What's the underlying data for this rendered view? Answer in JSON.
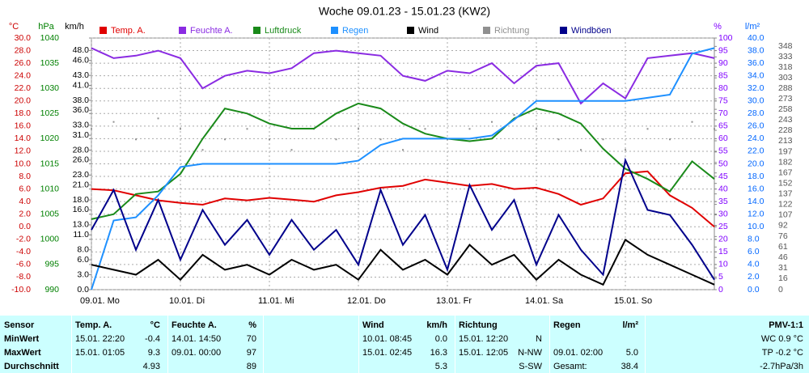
{
  "chart_data": {
    "type": "line",
    "title": "Woche 09.01.23 - 15.01.23 (KW2)",
    "grid": true,
    "xlim": [
      0,
      7
    ],
    "xticks": [
      {
        "value": 0,
        "label": "09.01. Mo"
      },
      {
        "value": 1,
        "label": "10.01. Di"
      },
      {
        "value": 2,
        "label": "11.01. Mi"
      },
      {
        "value": 3,
        "label": "12.01. Do"
      },
      {
        "value": 4,
        "label": "13.01. Fr"
      },
      {
        "value": 5,
        "label": "14.01. Sa"
      },
      {
        "value": 6,
        "label": "15.01. So"
      }
    ],
    "x": [
      0,
      0.25,
      0.5,
      0.75,
      1,
      1.25,
      1.5,
      1.75,
      2,
      2.25,
      2.5,
      2.75,
      3,
      3.25,
      3.5,
      3.75,
      4,
      4.25,
      4.5,
      4.75,
      5,
      5.25,
      5.5,
      5.75,
      6,
      6.25,
      6.5,
      6.75,
      7
    ],
    "axes": [
      {
        "label": "°C",
        "color": "#cc0000",
        "lim": [
          -10,
          30
        ],
        "ticks": [
          {
            "value": -10,
            "label": "-10.0"
          },
          {
            "value": -8,
            "label": "-8.0"
          },
          {
            "value": -6,
            "label": "-6.0"
          },
          {
            "value": -4,
            "label": "-4.0"
          },
          {
            "value": -2,
            "label": "-2.0"
          },
          {
            "value": 0,
            "label": "0.0"
          },
          {
            "value": 2,
            "label": "2.0"
          },
          {
            "value": 4,
            "label": "4.0"
          },
          {
            "value": 6,
            "label": "6.0"
          },
          {
            "value": 8,
            "label": "8.0"
          },
          {
            "value": 10,
            "label": "10.0"
          },
          {
            "value": 12,
            "label": "12.0"
          },
          {
            "value": 14,
            "label": "14.0"
          },
          {
            "value": 16,
            "label": "16.0"
          },
          {
            "value": 18,
            "label": "18.0"
          },
          {
            "value": 20,
            "label": "20.0"
          },
          {
            "value": 22,
            "label": "22.0"
          },
          {
            "value": 24,
            "label": "24.0"
          },
          {
            "value": 26,
            "label": "26.0"
          },
          {
            "value": 28,
            "label": "28.0"
          },
          {
            "value": 30,
            "label": "30.0"
          }
        ]
      },
      {
        "label": "hPa",
        "color": "#008000",
        "lim": [
          990,
          1040
        ],
        "ticks": [
          990,
          995,
          1000,
          1005,
          1010,
          1015,
          1020,
          1025,
          1030,
          1035,
          1040
        ]
      },
      {
        "label": "km/h",
        "color": "#000000",
        "lim": [
          0,
          50.5
        ],
        "ticks": [
          {
            "value": 0,
            "label": "0.0"
          },
          {
            "value": 3,
            "label": "3.0"
          },
          {
            "value": 6,
            "label": "6.0"
          },
          {
            "value": 8,
            "label": "8.0"
          },
          {
            "value": 11,
            "label": "11.0"
          },
          {
            "value": 13,
            "label": "13.0"
          },
          {
            "value": 16,
            "label": "16.0"
          },
          {
            "value": 18,
            "label": "18.0"
          },
          {
            "value": 21,
            "label": "21.0"
          },
          {
            "value": 23,
            "label": "23.0"
          },
          {
            "value": 26,
            "label": "26.0"
          },
          {
            "value": 28,
            "label": "28.0"
          },
          {
            "value": 31,
            "label": "31.0"
          },
          {
            "value": 33,
            "label": "33.0"
          },
          {
            "value": 36,
            "label": "36.0"
          },
          {
            "value": 38,
            "label": "38.0"
          },
          {
            "value": 41,
            "label": "41.0"
          },
          {
            "value": 43,
            "label": "43.0"
          },
          {
            "value": 46,
            "label": "46.0"
          },
          {
            "value": 48,
            "label": "48.0"
          }
        ]
      },
      {
        "label": "%",
        "color": "#8000ff",
        "lim": [
          0,
          100
        ],
        "ticks": [
          0,
          5,
          10,
          15,
          20,
          25,
          30,
          35,
          40,
          45,
          50,
          55,
          60,
          65,
          70,
          75,
          80,
          85,
          90,
          95,
          100
        ]
      },
      {
        "label": "l/m²",
        "color": "#0066ff",
        "lim": [
          0,
          40
        ],
        "ticks": [
          {
            "value": 0,
            "label": "0.0"
          },
          {
            "value": 2,
            "label": "2.0"
          },
          {
            "value": 4,
            "label": "4.0"
          },
          {
            "value": 6,
            "label": "6.0"
          },
          {
            "value": 8,
            "label": "8.0"
          },
          {
            "value": 10,
            "label": "10.0"
          },
          {
            "value": 12,
            "label": "12.0"
          },
          {
            "value": 14,
            "label": "14.0"
          },
          {
            "value": 16,
            "label": "16.0"
          },
          {
            "value": 18,
            "label": "18.0"
          },
          {
            "value": 20,
            "label": "20.0"
          },
          {
            "value": 22,
            "label": "22.0"
          },
          {
            "value": 24,
            "label": "24.0"
          },
          {
            "value": 26,
            "label": "26.0"
          },
          {
            "value": 28,
            "label": "28.0"
          },
          {
            "value": 30,
            "label": "30.0"
          },
          {
            "value": 32,
            "label": "32.0"
          },
          {
            "value": 34,
            "label": "34.0"
          },
          {
            "value": 36,
            "label": "36.0"
          },
          {
            "value": 38,
            "label": "38.0"
          },
          {
            "value": 40,
            "label": "40.0"
          }
        ]
      },
      {
        "color": "#555555",
        "lim": [
          0,
          360
        ],
        "ticks": [
          0,
          16,
          31,
          46,
          61,
          76,
          92,
          107,
          122,
          137,
          152,
          167,
          182,
          197,
          213,
          228,
          243,
          258,
          273,
          288,
          303,
          318,
          333,
          348
        ]
      }
    ],
    "series": [
      {
        "name": "Temp. A.",
        "color": "#e00000",
        "axis": 0,
        "style": "line",
        "values": [
          6.0,
          5.8,
          5.0,
          4.2,
          3.8,
          3.5,
          4.5,
          4.2,
          4.6,
          4.3,
          4.0,
          5.0,
          5.5,
          6.2,
          6.5,
          7.5,
          7.0,
          6.5,
          6.8,
          6.0,
          6.2,
          5.2,
          3.5,
          4.5,
          8.5,
          8.8,
          5.0,
          3.0,
          0.0
        ]
      },
      {
        "name": "Feuchte A.",
        "color": "#8a2be2",
        "axis": 3,
        "style": "line",
        "values": [
          96,
          92,
          93,
          95,
          92,
          80,
          85,
          87,
          86,
          88,
          94,
          95,
          94,
          93,
          85,
          83,
          87,
          86,
          90,
          82,
          89,
          90,
          74,
          82,
          76,
          92,
          93,
          94,
          92
        ]
      },
      {
        "name": "Luftdruck",
        "color": "#1a8a1a",
        "axis": 1,
        "style": "line",
        "values": [
          1004,
          1005,
          1009,
          1009.5,
          1013,
          1020,
          1026,
          1025,
          1023,
          1022,
          1022,
          1025,
          1027,
          1026,
          1023,
          1021,
          1020,
          1019.5,
          1020,
          1024,
          1026,
          1025,
          1023,
          1018,
          1014,
          1012,
          1009.5,
          1015.5,
          1012
        ]
      },
      {
        "name": "Regen",
        "color": "#1e90ff",
        "axis": 4,
        "style": "line",
        "values": [
          0,
          11,
          11.5,
          15,
          19.5,
          20,
          20,
          20,
          20,
          20,
          20,
          20,
          20.5,
          23,
          24,
          24,
          24,
          24,
          24.5,
          27,
          30,
          30,
          30,
          30,
          30,
          30.5,
          31,
          37.5,
          38.4
        ]
      },
      {
        "name": "Wind",
        "color": "#000000",
        "axis": 2,
        "style": "line",
        "values": [
          5,
          4,
          3,
          6,
          2,
          7,
          4,
          5,
          3,
          6,
          4,
          5,
          2,
          8,
          4,
          6,
          3,
          9,
          5,
          7,
          2,
          6,
          3,
          1,
          10,
          7,
          5,
          3,
          1
        ]
      },
      {
        "name": "Richtung",
        "color": "#909090",
        "axis": 5,
        "style": "dots",
        "values": [
          230,
          240,
          215,
          245,
          230,
          200,
          215,
          230,
          215,
          200,
          230,
          215,
          230,
          215,
          200,
          230,
          215,
          230,
          240,
          250,
          230,
          215,
          200,
          215,
          200,
          230,
          215,
          240,
          230
        ]
      },
      {
        "name": "Windböen",
        "color": "#00008b",
        "axis": 2,
        "style": "line",
        "values": [
          12,
          20,
          8,
          18,
          6,
          16,
          9,
          14,
          7,
          14,
          8,
          12,
          5,
          20,
          9,
          15,
          4,
          21,
          12,
          18,
          5,
          15,
          8,
          3,
          26,
          16,
          15,
          9,
          2
        ]
      }
    ]
  },
  "stats": {
    "header": [
      "Sensor",
      "Temp. A.",
      "°C",
      "Feuchte A.",
      "%",
      "Wind",
      "km/h",
      "Richtung",
      null,
      "Regen",
      "l/m²",
      "PMV-1:1"
    ],
    "rows": [
      [
        "MinWert",
        "15.01. 22:20",
        "-0.4",
        "14.01. 14:50",
        "70",
        "10.01. 08:45",
        "0.0",
        "15.01. 12:20",
        "N",
        null,
        null,
        "WC 0.9 °C"
      ],
      [
        "MaxWert",
        "15.01. 01:05",
        "9.3",
        "09.01. 00:00",
        "97",
        "15.01. 02:45",
        "16.3",
        "15.01. 12:05",
        "N-NW",
        "09.01. 02:00",
        "5.0",
        "TP -0.2 °C"
      ],
      [
        "Durchschnitt",
        null,
        "4.93",
        null,
        "89",
        null,
        "5.3",
        null,
        "S-SW",
        "Gesamt:",
        "38.4",
        "-2.7hPa/3h"
      ]
    ]
  }
}
